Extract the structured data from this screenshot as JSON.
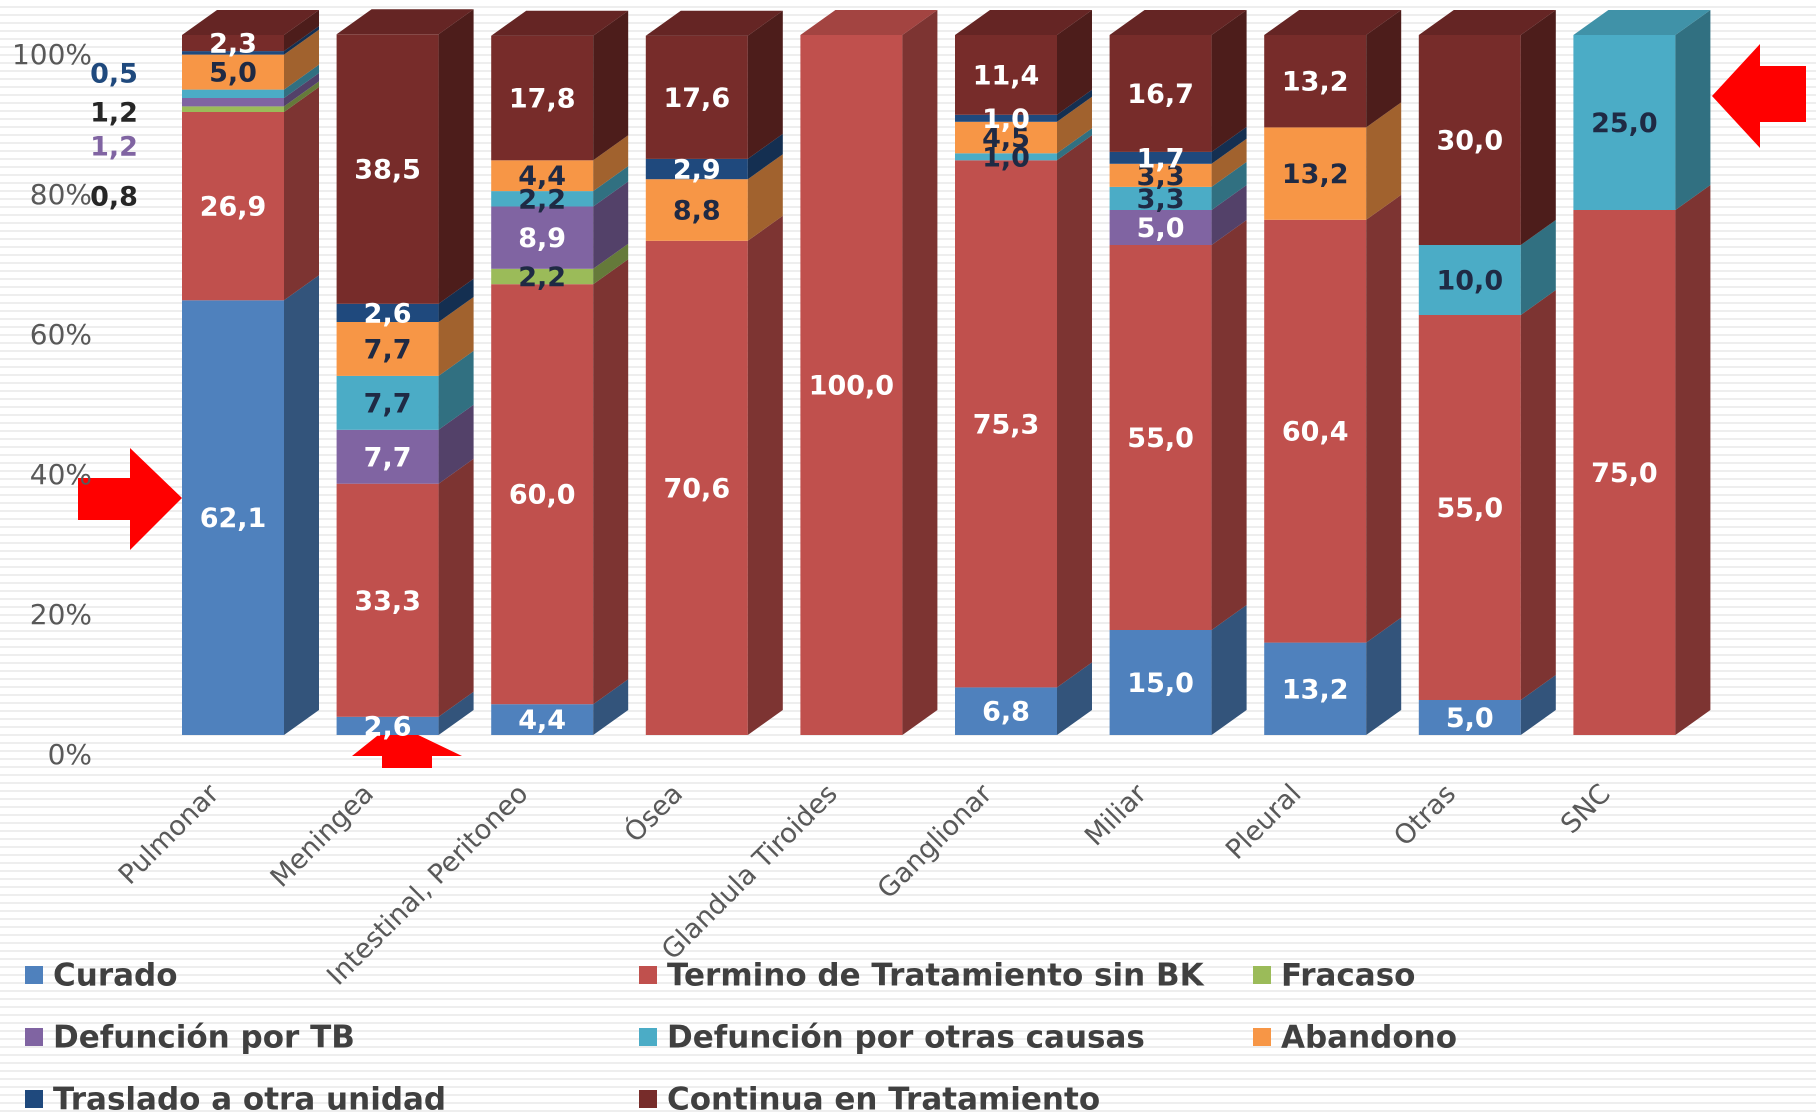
{
  "chart_data": {
    "type": "stacked-bar-3d",
    "categories": [
      "Pulmonar",
      "Meningea",
      "Intestinal, Peritoneo",
      "Ósea",
      "Glandula Tiroides",
      "Ganglionar",
      "Miliar",
      "Pleural",
      "Otras",
      "SNC"
    ],
    "ylim": [
      0,
      100
    ],
    "yticks": [
      {
        "value": 0,
        "label": "0%"
      },
      {
        "value": 20,
        "label": "20%"
      },
      {
        "value": 40,
        "label": "40%"
      },
      {
        "value": 60,
        "label": "60%"
      },
      {
        "value": 80,
        "label": "80%"
      },
      {
        "value": 100,
        "label": "100%"
      }
    ],
    "series": [
      {
        "name": "Curado",
        "color": "#4f81bd",
        "values": [
          62.1,
          2.6,
          4.4,
          null,
          null,
          6.8,
          15.0,
          13.2,
          5.0,
          null
        ],
        "value_labels": [
          "62,1",
          "2,6",
          "4,4",
          null,
          null,
          "6,8",
          "15,0",
          "13,2",
          "5,0",
          null
        ]
      },
      {
        "name": "Termino de Tratamiento sin BK",
        "color": "#c0504d",
        "values": [
          26.9,
          33.3,
          60.0,
          70.6,
          100.0,
          75.3,
          55.0,
          60.4,
          55.0,
          75.0
        ],
        "value_labels": [
          "26,9",
          "33,3",
          "60,0",
          "70,6",
          "100,0",
          "75,3",
          "55,0",
          "60,4",
          "55,0",
          "75,0"
        ]
      },
      {
        "name": "Fracaso",
        "color": "#9bbb59",
        "values": [
          0.8,
          null,
          2.2,
          null,
          null,
          null,
          null,
          null,
          null,
          null
        ],
        "value_labels": [
          "0,8",
          null,
          "2,2",
          null,
          null,
          null,
          null,
          null,
          null,
          null
        ]
      },
      {
        "name": "Defunción por TB",
        "color": "#8064a2",
        "values": [
          1.2,
          7.7,
          8.9,
          null,
          null,
          null,
          5.0,
          null,
          null,
          null
        ],
        "value_labels": [
          "1,2",
          "7,7",
          "8,9",
          null,
          null,
          null,
          "5,0",
          null,
          null,
          null
        ]
      },
      {
        "name": "Defunción por otras causas",
        "color": "#4bacc6",
        "values": [
          1.2,
          7.7,
          2.2,
          null,
          null,
          1.0,
          3.3,
          null,
          10.0,
          25.0
        ],
        "value_labels": [
          "1,2",
          "7,7",
          "2,2",
          null,
          null,
          "1,0",
          "3,3",
          null,
          "10,0",
          "25,0"
        ]
      },
      {
        "name": "Abandono",
        "color": "#f79646",
        "values": [
          5.0,
          7.7,
          4.4,
          8.8,
          null,
          4.5,
          3.3,
          13.2,
          null,
          null
        ],
        "value_labels": [
          "5,0",
          "7,7",
          "4,4",
          "8,8",
          null,
          "4,5",
          "3,3",
          "13,2",
          null,
          null
        ]
      },
      {
        "name": "Traslado a otra unidad",
        "color": "#1f497d",
        "values": [
          0.5,
          2.6,
          null,
          2.9,
          null,
          1.0,
          1.7,
          null,
          null,
          null
        ],
        "value_labels": [
          "0,5",
          "2,6",
          null,
          "2,9",
          null,
          "1,0",
          "1,7",
          null,
          null,
          null
        ]
      },
      {
        "name": "Continua en Tratamiento",
        "color": "#772c2a",
        "values": [
          2.3,
          38.5,
          17.8,
          17.6,
          null,
          11.4,
          16.7,
          13.2,
          30.0,
          null
        ],
        "value_labels": [
          "2,3",
          "38,5",
          "17,8",
          "17,6",
          null,
          "11,4",
          "16,7",
          "13,2",
          "30,0",
          null
        ]
      }
    ]
  }
}
